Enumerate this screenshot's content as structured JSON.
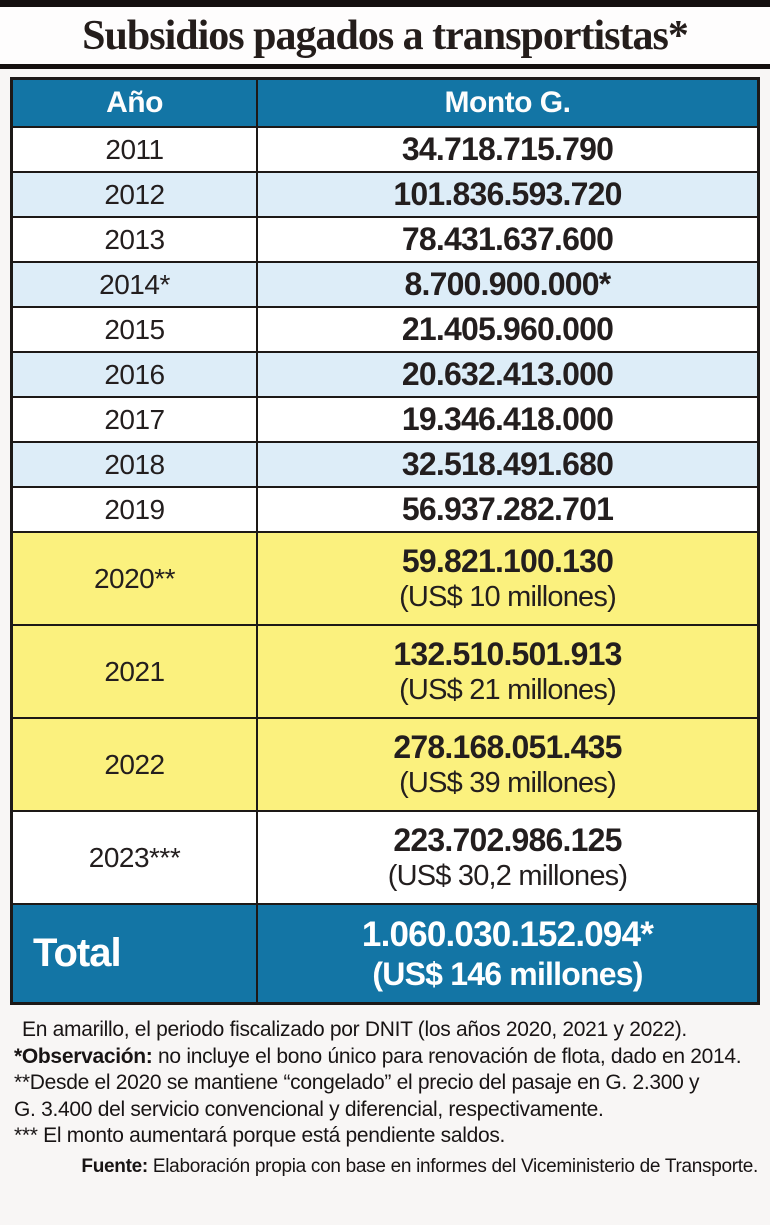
{
  "page": {
    "title": "Subsidios pagados a transportistas*"
  },
  "colors": {
    "header_blue": "#1375a5",
    "row_lightblue": "#ddedf8",
    "row_yellow": "#fbf17e",
    "border_black": "#1d1917",
    "text_dark": "#231e1e",
    "page_background": "#f8f6f5"
  },
  "table": {
    "headers": {
      "year": "Año",
      "amount": "Monto G."
    },
    "rows": [
      {
        "year": "2011",
        "amount": "34.718.715.790",
        "usd": "",
        "tone": "white"
      },
      {
        "year": "2012",
        "amount": "101.836.593.720",
        "usd": "",
        "tone": "lightblue"
      },
      {
        "year": "2013",
        "amount": "78.431.637.600",
        "usd": "",
        "tone": "white"
      },
      {
        "year": "2014*",
        "amount": "8.700.900.000*",
        "usd": "",
        "tone": "lightblue"
      },
      {
        "year": "2015",
        "amount": "21.405.960.000",
        "usd": "",
        "tone": "white"
      },
      {
        "year": "2016",
        "amount": "20.632.413.000",
        "usd": "",
        "tone": "lightblue"
      },
      {
        "year": "2017",
        "amount": "19.346.418.000",
        "usd": "",
        "tone": "white"
      },
      {
        "year": "2018",
        "amount": "32.518.491.680",
        "usd": "",
        "tone": "lightblue"
      },
      {
        "year": "2019",
        "amount": "56.937.282.701",
        "usd": "",
        "tone": "white"
      },
      {
        "year": "2020**",
        "amount": "59.821.100.130",
        "usd": "(US$ 10 millones)",
        "tone": "yellow"
      },
      {
        "year": "2021",
        "amount": "132.510.501.913",
        "usd": "(US$ 21 millones)",
        "tone": "yellow"
      },
      {
        "year": "2022",
        "amount": "278.168.051.435",
        "usd": "(US$ 39 millones)",
        "tone": "yellow"
      },
      {
        "year": "2023***",
        "amount": "223.702.986.125",
        "usd": "(US$ 30,2 millones)",
        "tone": "white"
      }
    ],
    "total": {
      "label": "Total",
      "amount": "1.060.030.152.094*",
      "usd": "(US$ 146 millones)"
    }
  },
  "notes": [
    {
      "bold": "",
      "text": "En amarillo, el periodo fiscalizado por DNIT (los años 2020, 2021 y 2022)."
    },
    {
      "bold": "*Observación:",
      "text": " no incluye el bono único para renovación de flota, dado en 2014."
    },
    {
      "bold": "",
      "text": "**Desde el 2020 se mantiene “congelado” el precio del pasaje en G. 2.300 y"
    },
    {
      "bold": "",
      "text": "G. 3.400 del servicio convencional y diferencial, respectivamente."
    },
    {
      "bold": "",
      "text": "*** El monto aumentará porque está pendiente saldos."
    }
  ],
  "source": {
    "label": "Fuente:",
    "text": " Elaboración propia con base en informes del Viceministerio de Transporte."
  },
  "chart_data": {
    "type": "table",
    "title": "Subsidios pagados a transportistas*",
    "columns": [
      "Año",
      "Monto G."
    ],
    "rows": [
      [
        "2011",
        34718715790
      ],
      [
        "2012",
        101836593720
      ],
      [
        "2013",
        78431637600
      ],
      [
        "2014",
        8700900000
      ],
      [
        "2015",
        21405960000
      ],
      [
        "2016",
        20632413000
      ],
      [
        "2017",
        19346418000
      ],
      [
        "2018",
        32518491680
      ],
      [
        "2019",
        56937282701
      ],
      [
        "2020",
        59821100130
      ],
      [
        "2021",
        132510501913
      ],
      [
        "2022",
        278168051435
      ],
      [
        "2023",
        223702986125
      ]
    ],
    "usd_millones": {
      "2020": 10,
      "2021": 21,
      "2022": 39,
      "2023": 30.2,
      "total": 146
    },
    "total": 1060030152094,
    "highlighted_years": [
      "2020",
      "2021",
      "2022"
    ],
    "highlight_color": "#fbf17e"
  }
}
